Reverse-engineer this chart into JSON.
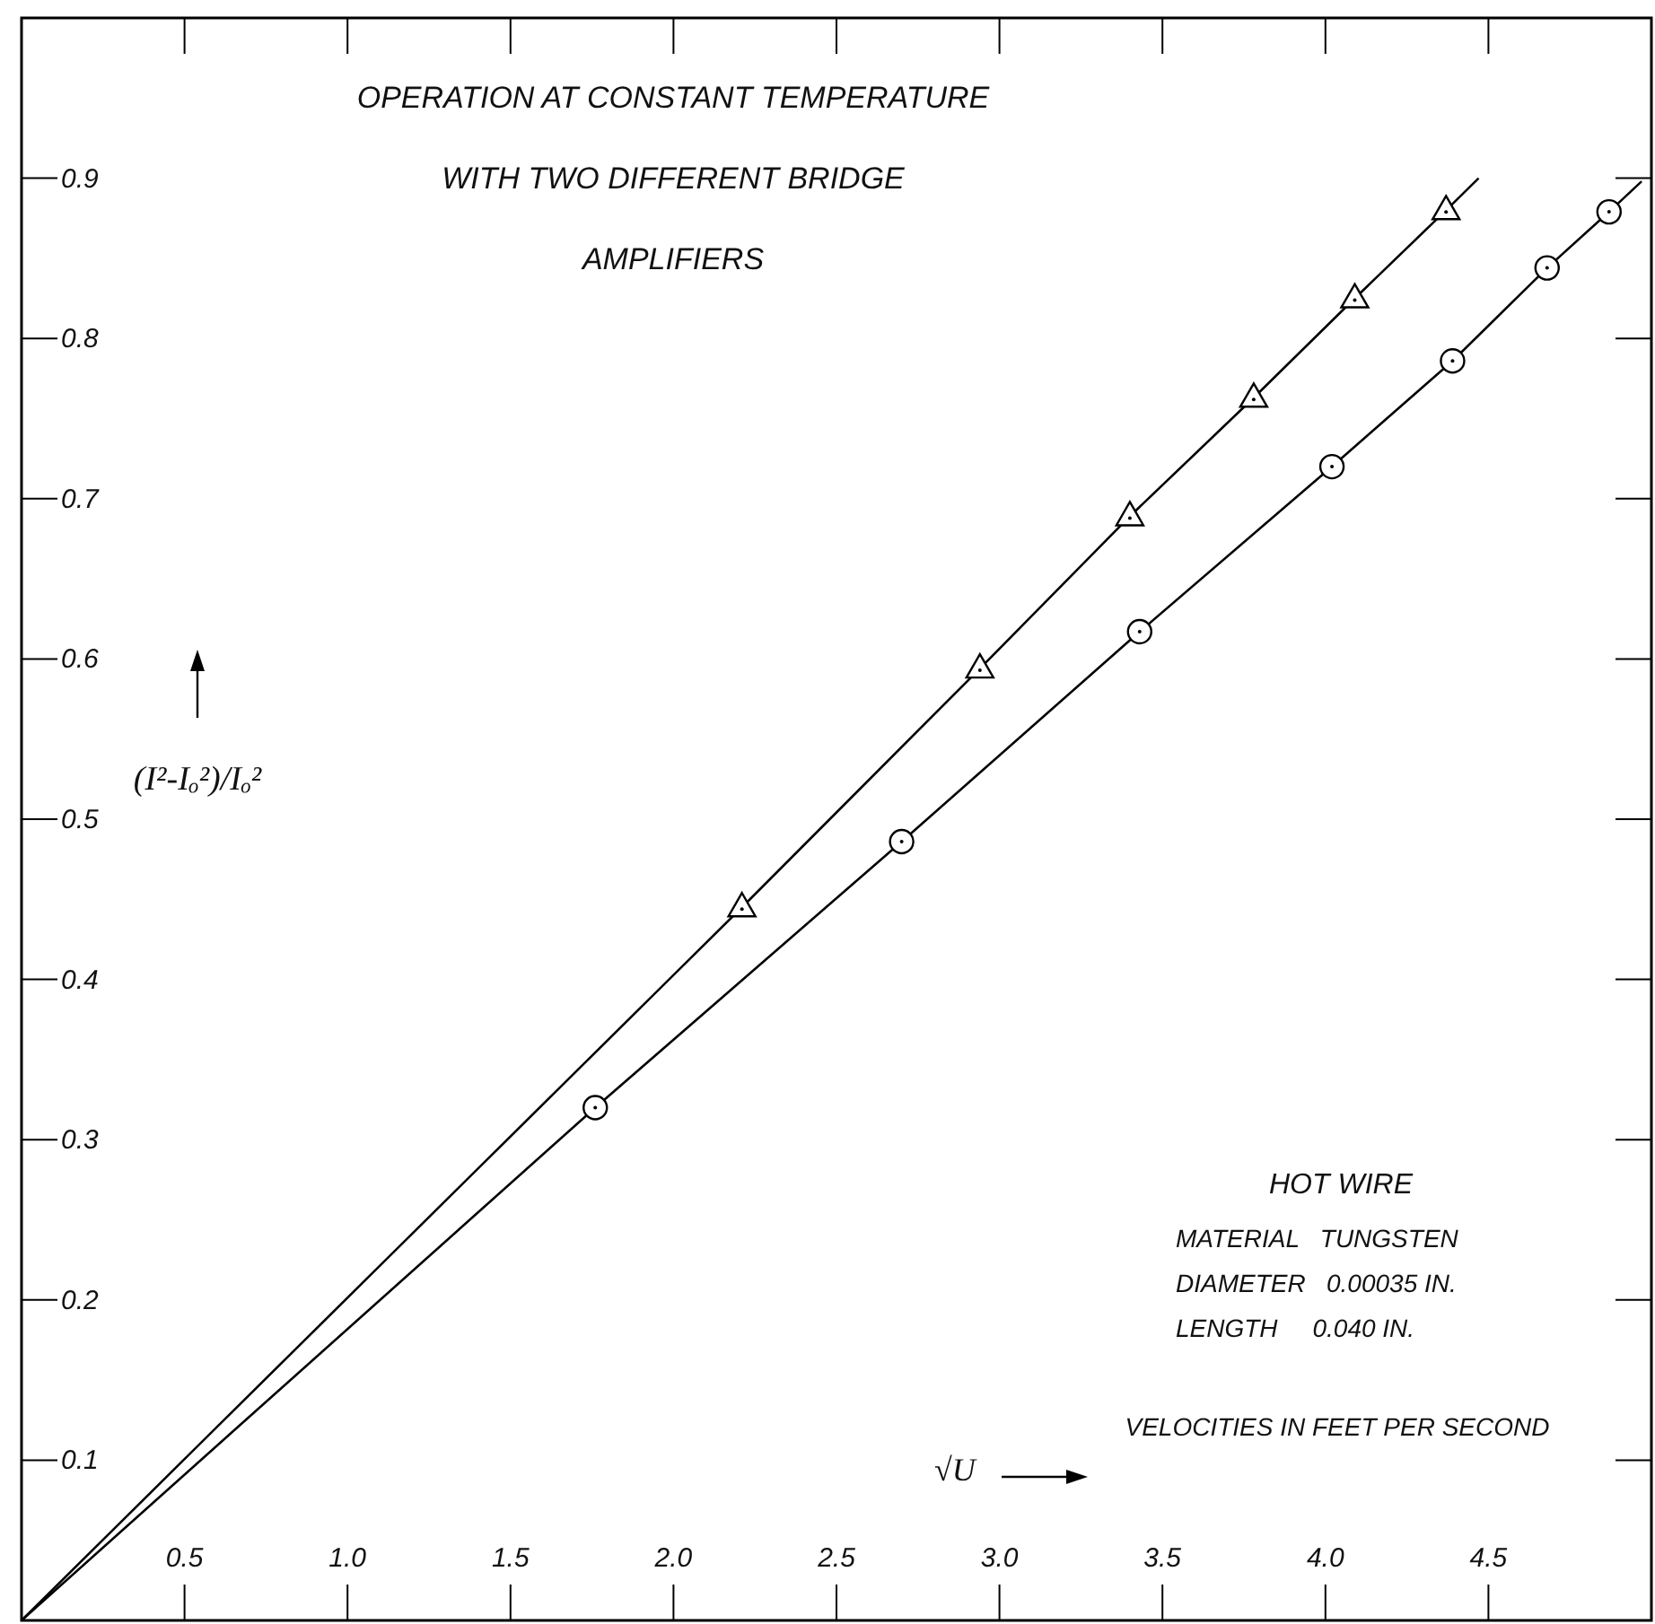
{
  "chart_data": {
    "type": "scatter",
    "title": "OPERATION AT CONSTANT TEMPERATURE\nWITH TWO DIFFERENT BRIDGE\nAMPLIFIERS",
    "xlabel": "√U",
    "ylabel": "(I²-Iₒ²)/Iₒ²",
    "xlim": [
      0,
      5
    ],
    "ylim": [
      0,
      1
    ],
    "xticks": [
      0.5,
      {
        "value": 1,
        "label": "1.0"
      },
      1.5,
      {
        "value": 2,
        "label": "2.0"
      },
      2.5,
      {
        "value": 3,
        "label": "3.0"
      },
      3.5,
      {
        "value": 4,
        "label": "4.0"
      },
      4.5
    ],
    "yticks": [
      0.1,
      0.2,
      0.3,
      0.4,
      0.5,
      0.6,
      0.7,
      0.8,
      0.9
    ],
    "grid": false,
    "annotations": [
      "HOT WIRE",
      "MATERIAL   TUNGSTEN",
      "DIAMETER   0.00035 IN.",
      "LENGTH     0.040 IN.",
      "VELOCITIES IN FEET PER SECOND"
    ],
    "series": [
      {
        "type": "line",
        "color": "#000000",
        "marker": "none",
        "x": [
          0,
          2.21,
          2.94,
          3.4,
          3.78,
          4.09,
          4.37,
          4.47
        ],
        "values": [
          0,
          0.445,
          0.594,
          0.689,
          0.763,
          0.825,
          0.88,
          0.9
        ]
      },
      {
        "type": "line",
        "color": "#000000",
        "marker": "none",
        "x": [
          0,
          1.76,
          2.7,
          3.43,
          4.02,
          4.39,
          4.68,
          4.87,
          4.97
        ],
        "values": [
          0,
          0.32,
          0.486,
          0.617,
          0.72,
          0.786,
          0.844,
          0.879,
          0.898
        ]
      },
      {
        "color": "#000000",
        "marker": "triangle",
        "x": [
          2.21,
          2.94,
          3.4,
          3.78,
          4.09,
          4.37
        ],
        "values": [
          0.445,
          0.594,
          0.689,
          0.763,
          0.825,
          0.88
        ]
      },
      {
        "color": "#000000",
        "marker": "circle",
        "x": [
          1.76,
          2.7,
          3.43,
          4.02,
          4.39,
          4.68,
          4.87
        ],
        "values": [
          0.32,
          0.486,
          0.617,
          0.72,
          0.786,
          0.844,
          0.879
        ]
      }
    ]
  }
}
